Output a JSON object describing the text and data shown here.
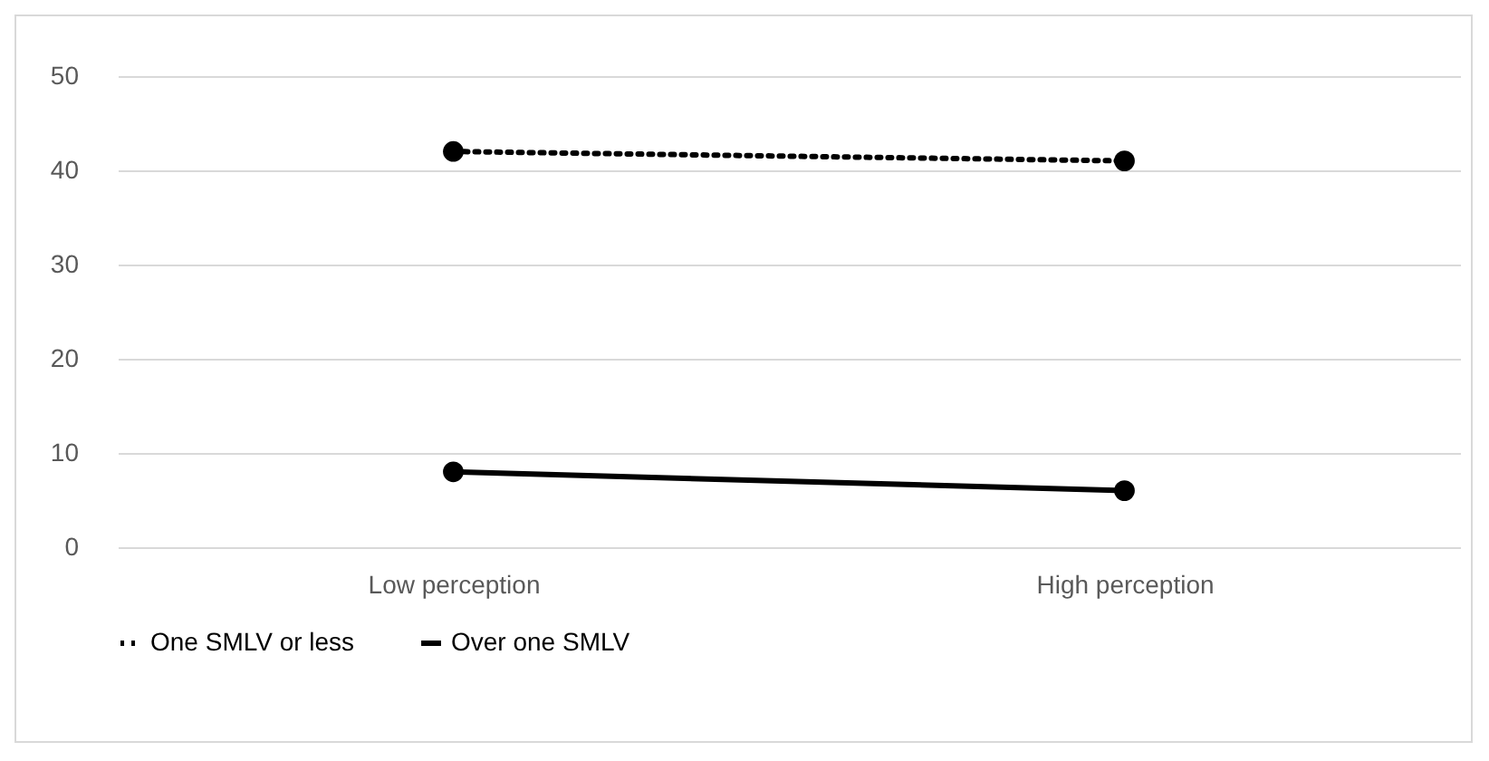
{
  "chart_data": {
    "type": "line",
    "categories": [
      "Low perception",
      "High perception"
    ],
    "series": [
      {
        "name": "One SMLV or less",
        "color": "#000000",
        "values": [
          42,
          41
        ],
        "line_style": "dotted"
      },
      {
        "name": "Over one SMLV",
        "color": "#000000",
        "values": [
          8,
          6
        ],
        "line_style": "solid"
      }
    ],
    "ylim": [
      0,
      50
    ],
    "yticks": [
      0,
      10,
      20,
      30,
      40,
      50
    ],
    "grid": "y",
    "legend": "bottom",
    "marker": "circle"
  }
}
